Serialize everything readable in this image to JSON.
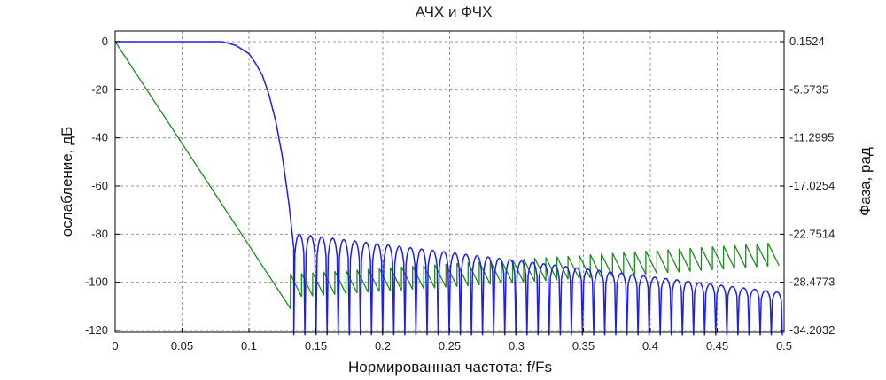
{
  "chart_data": {
    "type": "line",
    "title": "АЧХ и ФЧХ",
    "xlabel": "Нормированная частота: f/Fs",
    "ylabel": "ослабление, дБ",
    "y2label": "Фаза, рад",
    "xlim": [
      0,
      0.5
    ],
    "ylim": [
      -122,
      2
    ],
    "y2lim": [
      -34.2032,
      0.1524
    ],
    "x_ticks": [
      0,
      0.05,
      0.1,
      0.15,
      0.2,
      0.25,
      0.3,
      0.35,
      0.4,
      0.45,
      0.5
    ],
    "x_tick_labels": [
      "0",
      "0.05",
      "0.1",
      "0.15",
      "0.2",
      "0.25",
      "0.3",
      "0.35",
      "0.4",
      "0.45",
      "0.5"
    ],
    "y_ticks": [
      0,
      -20,
      -40,
      -60,
      -80,
      -100,
      -120
    ],
    "y_tick_labels": [
      "0",
      "-20",
      "-40",
      "-60",
      "-80",
      "-100",
      "-120"
    ],
    "y2_tick_labels": [
      "0.1524",
      "-5.5735",
      "-11.2995",
      "-17.0254",
      "-22.7514",
      "-28.4773",
      "-34.2032"
    ],
    "grid": true,
    "series": [
      {
        "color": "#1f1fe6",
        "axis": "left",
        "passband": {
          "x": [
            0,
            0.08
          ],
          "y": 0
        },
        "transition": {
          "x": [
            0.08,
            0.09,
            0.1,
            0.105,
            0.11,
            0.115,
            0.12,
            0.125,
            0.13,
            0.1335
          ],
          "y": [
            0,
            -1.5,
            -5,
            -9,
            -14,
            -22,
            -33,
            -48,
            -68,
            -86
          ]
        },
        "stopband": {
          "x_start": 0.1335,
          "lobe_width": 0.0083,
          "peak_start": -80,
          "peak_end": -104,
          "floor": -122
        }
      },
      {
        "color": "#1a8c1a",
        "axis": "right",
        "linear": {
          "x": [
            0,
            0.131
          ],
          "y": [
            0.1524,
            -31.6
          ]
        },
        "sawtooth": {
          "x_start": 0.131,
          "period": 0.0083,
          "low_start": -27.5,
          "low_end": -23.8,
          "amplitude": 2.7
        }
      }
    ]
  }
}
